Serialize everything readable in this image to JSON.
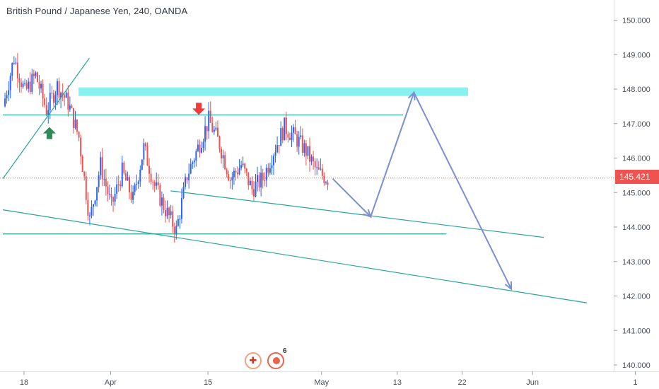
{
  "header": {
    "title": "British Pound / Japanese Yen, 240, OANDA"
  },
  "price_axis": {
    "current_price_label": "145.421",
    "current_price_color": "#ef5350"
  },
  "event_icons": {
    "flag_icon": "uk-flag-icon",
    "events_count": "6"
  },
  "colors": {
    "up_candle": "#2962ff",
    "down_candle": "#ef5350",
    "trendline": "#26a69a",
    "arrow": "#7b8fd4",
    "resistance_zone": "#7df0f0"
  },
  "chart_data": {
    "type": "candlestick",
    "title": "British Pound / Japanese Yen, 240, OANDA",
    "symbol": "GBPJPY",
    "timeframe": "240",
    "source": "OANDA",
    "last_price": 145.421,
    "ylim": [
      139.75,
      150.5
    ],
    "y_ticks": [
      "140.000",
      "141.000",
      "142.000",
      "143.000",
      "144.000",
      "145.000",
      "146.000",
      "147.000",
      "148.000",
      "149.000",
      "150.000"
    ],
    "x_ticks": [
      "18",
      "Apr",
      "15",
      "May",
      "13",
      "22",
      "Jun",
      "1"
    ],
    "price_path": [
      [
        0,
        147.5
      ],
      [
        1,
        148.9
      ],
      [
        2,
        147.9
      ],
      [
        3,
        148.4
      ],
      [
        4,
        147.4
      ],
      [
        5,
        148.1
      ],
      [
        6,
        147.6
      ],
      [
        7,
        146.6
      ],
      [
        8,
        144.2
      ],
      [
        9,
        145.8
      ],
      [
        10,
        144.6
      ],
      [
        11,
        145.6
      ],
      [
        12,
        144.8
      ],
      [
        13,
        146.3
      ],
      [
        14,
        145.2
      ],
      [
        15,
        144.5
      ],
      [
        16,
        143.9
      ],
      [
        17,
        145.5
      ],
      [
        18,
        146.3
      ],
      [
        19,
        147.1
      ],
      [
        20,
        146.4
      ],
      [
        21,
        145.4
      ],
      [
        22,
        145.8
      ],
      [
        23,
        145.1
      ],
      [
        24,
        145.4
      ],
      [
        25,
        146.2
      ],
      [
        26,
        146.9
      ],
      [
        27,
        146.6
      ],
      [
        28,
        146.2
      ],
      [
        29,
        145.6
      ],
      [
        30,
        145.4
      ]
    ],
    "overlays": [
      {
        "type": "zone",
        "from": [
          7,
          148.05
        ],
        "to": [
          43,
          147.8
        ]
      },
      {
        "type": "horizontal_line",
        "from": [
          0,
          147.25
        ],
        "to": [
          37,
          147.25
        ]
      },
      {
        "type": "horizontal_line",
        "from": [
          0,
          143.8
        ],
        "to": [
          41,
          143.8
        ]
      },
      {
        "type": "trendline",
        "from": [
          0,
          145.4
        ],
        "to": [
          8,
          148.9
        ]
      },
      {
        "type": "trendline",
        "from": [
          0,
          144.5
        ],
        "to": [
          54,
          141.8
        ]
      },
      {
        "type": "trendline",
        "from": [
          15.5,
          145.05
        ],
        "to": [
          50,
          143.7
        ]
      },
      {
        "type": "arrow",
        "points": [
          [
            30.5,
            145.4
          ],
          [
            34,
            144.3
          ],
          [
            38,
            147.9
          ],
          [
            47,
            142.2
          ]
        ]
      },
      {
        "type": "marker_up",
        "at": [
          3,
          146.9
        ]
      },
      {
        "type": "marker_down",
        "at": [
          17,
          147.5
        ]
      }
    ]
  }
}
